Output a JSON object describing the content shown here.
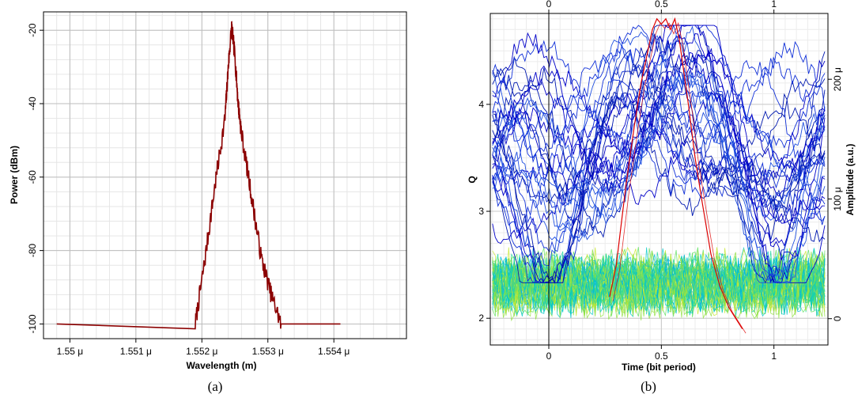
{
  "chart_data": [
    {
      "type": "line",
      "panel_label": "(a)",
      "xlabel": "Wavelength (m)",
      "ylabel": "Power (dBm)",
      "xlim": [
        1.5496,
        1.5551
      ],
      "ylim": [
        -104,
        -15
      ],
      "xticks": [
        1.55,
        1.551,
        1.552,
        1.553,
        1.554
      ],
      "xtick_labels": [
        "1.55 μ",
        "1.551 μ",
        "1.552 μ",
        "1.553 μ",
        "1.554 μ"
      ],
      "yticks": [
        -20,
        -40,
        -60,
        -80,
        -100
      ],
      "ytick_labels": [
        "-20",
        "-40",
        "-60",
        "-80",
        "-100"
      ],
      "grid": true,
      "line_color": "#8b0000",
      "series": [
        {
          "x": [
            1.5498,
            1.5519,
            1.55205,
            1.5522,
            1.55235,
            1.5524,
            1.55245,
            1.5525,
            1.55255,
            1.5526,
            1.55275,
            1.5529,
            1.55305,
            1.5532,
            1.5541
          ],
          "y": [
            -100,
            -100,
            -82,
            -62,
            -44,
            -30,
            -19,
            -27,
            -40,
            -48,
            -65,
            -82,
            -92,
            -100,
            -100
          ]
        }
      ]
    },
    {
      "type": "line",
      "panel_label": "(b)",
      "xlabel": "Time (bit period)",
      "ylabel": "Q",
      "ylabel_right": "Amplitude (a.u.)",
      "xlim": [
        -0.26,
        1.24
      ],
      "ylim_left": [
        1.75,
        4.85
      ],
      "ylim_right": [
        -2.2e-05,
        0.000255
      ],
      "xticks": [
        0,
        0.5,
        1
      ],
      "xtick_labels": [
        "0",
        "0.5",
        "1"
      ],
      "yticks_left": [
        2,
        3,
        4
      ],
      "ytick_labels_left": [
        "2",
        "3",
        "4"
      ],
      "yticks_right": [
        0,
        0.0001,
        0.0002
      ],
      "ytick_labels_right": [
        "0",
        "100 μ",
        "200 μ"
      ],
      "grid": true,
      "trace_colors_high": [
        "#0000c8",
        "#1030d8",
        "#2050e0",
        "#0018b0"
      ],
      "trace_colors_low": [
        "#00c8c8",
        "#20d8a0",
        "#60e060",
        "#90e040",
        "#c8e830",
        "#00b4e0"
      ],
      "q_curve_color": "#dd0000",
      "q_curve": {
        "x": [
          0.27,
          0.3,
          0.34,
          0.38,
          0.41,
          0.44,
          0.46,
          0.48,
          0.5,
          0.52,
          0.54,
          0.56,
          0.58,
          0.6,
          0.62,
          0.65,
          0.68,
          0.72,
          0.76,
          0.8,
          0.86
        ],
        "y": [
          2.2,
          2.5,
          3.2,
          3.8,
          4.2,
          4.5,
          4.7,
          4.8,
          4.75,
          4.8,
          4.7,
          4.8,
          4.6,
          4.3,
          4.0,
          3.5,
          3.1,
          2.6,
          2.3,
          2.1,
          1.9
        ]
      }
    }
  ],
  "captions": {
    "a": "(a)",
    "b": "(b)"
  }
}
